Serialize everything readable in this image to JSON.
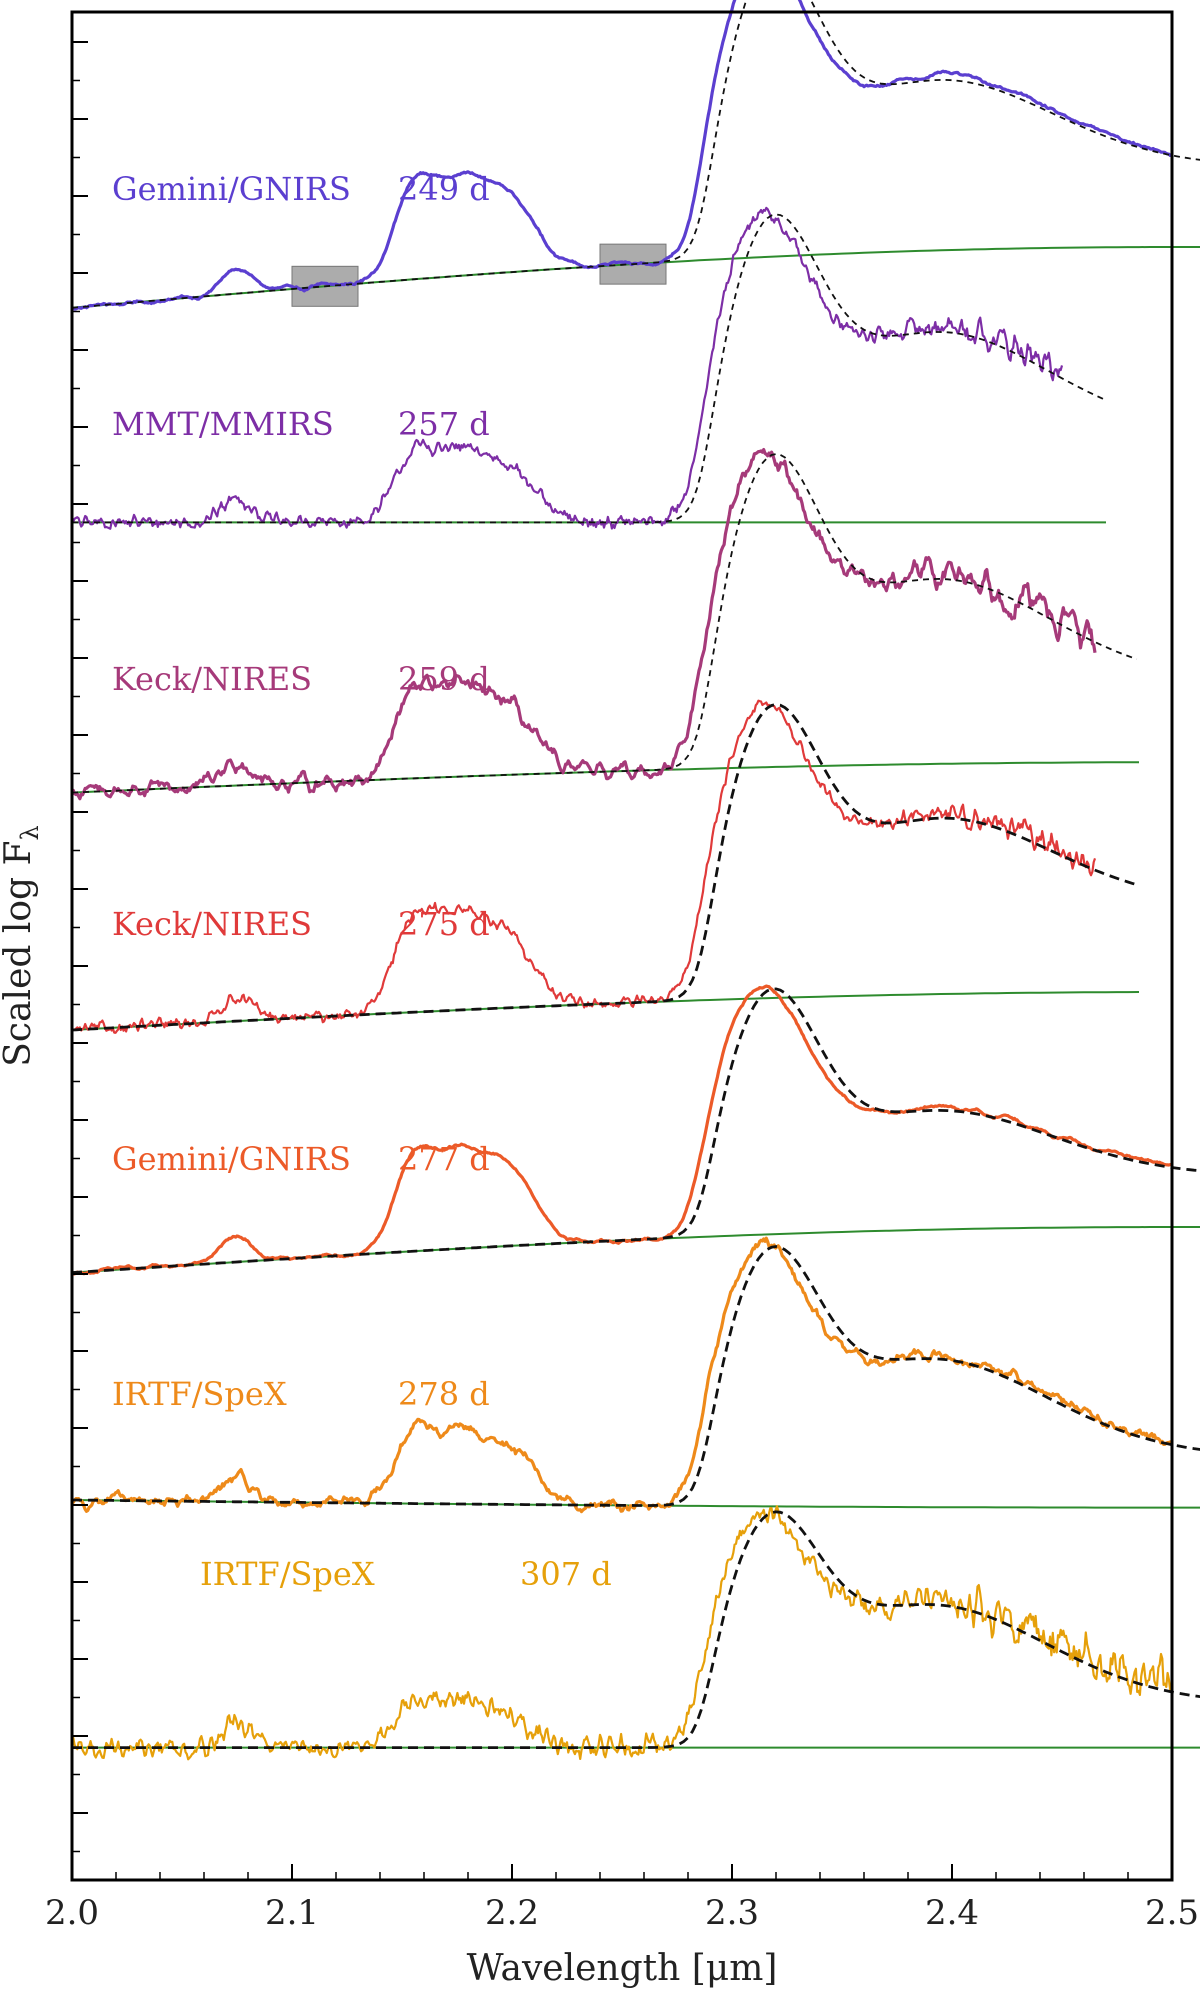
{
  "chart_data": {
    "type": "line",
    "title": "",
    "xlabel": "Wavelength [μm]",
    "ylabel": "Scaled log F",
    "ylabel_subscript": "λ",
    "xlim": [
      2.0,
      2.5
    ],
    "xticks": [
      2.0,
      2.1,
      2.2,
      2.3,
      2.4,
      2.5
    ],
    "xtick_labels": [
      "2.0",
      "2.1",
      "2.2",
      "2.3",
      "2.4",
      "2.5"
    ],
    "y_tick_labels_shown": false,
    "grid": false,
    "legend": "none",
    "shaded_regions": [
      {
        "x0": 2.1,
        "x1": 2.13,
        "spectrum": 0
      },
      {
        "x0": 2.24,
        "x1": 2.27,
        "spectrum": 0
      }
    ],
    "series": [
      {
        "label": "Gemini/GNIRS",
        "epoch": "249 d",
        "color": "#5b3fd0",
        "xmax": 2.5,
        "noise": 0.6,
        "smooth": 6,
        "features": {
          "b1": 0.55,
          "b2": 0.5,
          "co": 1.5,
          "co2": 0.75,
          "tail": 0.55
        },
        "continuum": {
          "start": -0.15,
          "end": 0.25
        }
      },
      {
        "label": "MMT/MMIRS",
        "epoch": "257 d",
        "color": "#7d2ea6",
        "xmax": 2.45,
        "noise": 1.5,
        "smooth": 1,
        "features": {
          "b1": 0.4,
          "b2": 0.35,
          "co": 1.5,
          "co2": 0.85,
          "tail": 0.6
        },
        "continuum": {
          "start": 0.05,
          "end": 0.05
        }
      },
      {
        "label": "Keck/NIRES",
        "epoch": "259 d",
        "color": "#a63a7a",
        "xmax": 2.465,
        "noise": 1.1,
        "smooth": 2,
        "features": {
          "b1": 0.5,
          "b2": 0.42,
          "co": 1.55,
          "co2": 0.85,
          "tail": 0.55
        },
        "continuum": {
          "start": -0.05,
          "end": 0.15
        }
      },
      {
        "label": "Keck/NIRES",
        "epoch": "275 d",
        "color": "#e03a3a",
        "xmax": 2.465,
        "noise": 1.3,
        "smooth": 1,
        "features": {
          "b1": 0.55,
          "b2": 0.45,
          "co": 1.45,
          "co2": 0.75,
          "tail": 0.6
        },
        "continuum": {
          "start": 0.0,
          "end": 0.25
        }
      },
      {
        "label": "Gemini/GNIRS",
        "epoch": "277 d",
        "color": "#ec5a28",
        "xmax": 2.5,
        "noise": 0.6,
        "smooth": 6,
        "features": {
          "b1": 0.55,
          "b2": 0.5,
          "co": 1.3,
          "co2": 0.55,
          "tail": 0.35
        },
        "continuum": {
          "start": -0.05,
          "end": 0.25
        }
      },
      {
        "label": "IRTF/SpeX",
        "epoch": "278 d",
        "color": "#ee8a1a",
        "xmax": 2.5,
        "noise": 1.0,
        "smooth": 3,
        "features": {
          "b1": 0.4,
          "b2": 0.35,
          "co": 1.3,
          "co2": 0.75,
          "tail": 0.35
        },
        "continuum": {
          "start": 0.0,
          "end": -0.05
        }
      },
      {
        "label": "IRTF/SpeX",
        "epoch": "307 d",
        "color": "#e6a00a",
        "xmax": 2.5,
        "noise": 2.3,
        "smooth": 1,
        "features": {
          "b1": 0.25,
          "b2": 0.2,
          "co": 1.15,
          "co2": 0.75,
          "tail": 0.3
        },
        "continuum": {
          "start": -0.05,
          "end": -0.05
        }
      }
    ],
    "model_line": {
      "style": "dashed",
      "color": "#111111"
    },
    "continuum_line": {
      "color": "#2e8b2e"
    }
  }
}
